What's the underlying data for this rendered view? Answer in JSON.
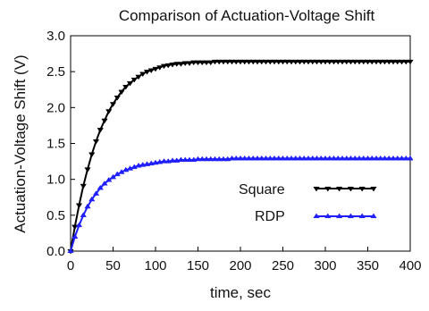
{
  "chart_data": {
    "type": "line",
    "title": "Comparison of Actuation-Voltage Shift",
    "xlabel": "time, sec",
    "ylabel": "Actuation-Voltage Shift (V)",
    "xlim": [
      0,
      400
    ],
    "ylim": [
      0.0,
      3.0
    ],
    "xticks": [
      "0",
      "50",
      "100",
      "150",
      "200",
      "250",
      "300",
      "350",
      "400"
    ],
    "yticks": [
      "0.0",
      "0.5",
      "1.0",
      "1.5",
      "2.0",
      "2.5",
      "3.0"
    ],
    "grid": false,
    "legend_position": "right",
    "series": [
      {
        "name": "Square",
        "color": "#000000",
        "marker": "triangle-down",
        "x": [
          0,
          5,
          10,
          15,
          20,
          25,
          30,
          35,
          40,
          45,
          50,
          55,
          60,
          65,
          70,
          75,
          80,
          85,
          90,
          95,
          100,
          105,
          110,
          115,
          120,
          125,
          130,
          135,
          140,
          145,
          150,
          155,
          160,
          165,
          170,
          175,
          180,
          185,
          190,
          195,
          200,
          205,
          210,
          215,
          220,
          225,
          230,
          235,
          240,
          245,
          250,
          255,
          260,
          265,
          270,
          275,
          280,
          285,
          290,
          295,
          300,
          305,
          310,
          315,
          320,
          325,
          330,
          335,
          340,
          345,
          350,
          355,
          360,
          365,
          370,
          375,
          380,
          385,
          390,
          395,
          400
        ],
        "values": [
          0.0,
          0.34,
          0.64,
          0.91,
          1.14,
          1.35,
          1.53,
          1.69,
          1.82,
          1.95,
          2.05,
          2.14,
          2.22,
          2.29,
          2.34,
          2.39,
          2.43,
          2.47,
          2.5,
          2.52,
          2.54,
          2.56,
          2.58,
          2.59,
          2.6,
          2.61,
          2.61,
          2.62,
          2.62,
          2.63,
          2.63,
          2.63,
          2.63,
          2.63,
          2.64,
          2.64,
          2.64,
          2.64,
          2.64,
          2.64,
          2.64,
          2.64,
          2.64,
          2.64,
          2.64,
          2.64,
          2.64,
          2.64,
          2.64,
          2.64,
          2.64,
          2.64,
          2.64,
          2.64,
          2.64,
          2.64,
          2.64,
          2.64,
          2.64,
          2.64,
          2.64,
          2.64,
          2.64,
          2.64,
          2.64,
          2.64,
          2.64,
          2.64,
          2.64,
          2.64,
          2.64,
          2.64,
          2.64,
          2.64,
          2.64,
          2.64,
          2.64,
          2.64,
          2.64,
          2.64,
          2.64
        ]
      },
      {
        "name": "RDP",
        "color": "#1f1fff",
        "marker": "triangle-up",
        "x": [
          0,
          5,
          10,
          15,
          20,
          25,
          30,
          35,
          40,
          45,
          50,
          55,
          60,
          65,
          70,
          75,
          80,
          85,
          90,
          95,
          100,
          105,
          110,
          115,
          120,
          125,
          130,
          135,
          140,
          145,
          150,
          155,
          160,
          165,
          170,
          175,
          180,
          185,
          190,
          195,
          200,
          205,
          210,
          215,
          220,
          225,
          230,
          235,
          240,
          245,
          250,
          255,
          260,
          265,
          270,
          275,
          280,
          285,
          290,
          295,
          300,
          305,
          310,
          315,
          320,
          325,
          330,
          335,
          340,
          345,
          350,
          355,
          360,
          365,
          370,
          375,
          380,
          385,
          390,
          395,
          400
        ],
        "values": [
          0.0,
          0.2,
          0.36,
          0.5,
          0.62,
          0.72,
          0.8,
          0.88,
          0.94,
          0.99,
          1.03,
          1.07,
          1.1,
          1.13,
          1.15,
          1.17,
          1.19,
          1.2,
          1.21,
          1.22,
          1.23,
          1.24,
          1.25,
          1.25,
          1.26,
          1.26,
          1.27,
          1.27,
          1.27,
          1.27,
          1.28,
          1.28,
          1.28,
          1.28,
          1.28,
          1.28,
          1.28,
          1.28,
          1.29,
          1.29,
          1.29,
          1.29,
          1.29,
          1.29,
          1.29,
          1.29,
          1.29,
          1.29,
          1.29,
          1.29,
          1.29,
          1.29,
          1.29,
          1.29,
          1.29,
          1.29,
          1.29,
          1.29,
          1.29,
          1.29,
          1.29,
          1.29,
          1.29,
          1.29,
          1.29,
          1.29,
          1.29,
          1.29,
          1.29,
          1.29,
          1.29,
          1.29,
          1.29,
          1.29,
          1.29,
          1.29,
          1.29,
          1.29,
          1.29,
          1.29,
          1.29
        ]
      }
    ]
  }
}
